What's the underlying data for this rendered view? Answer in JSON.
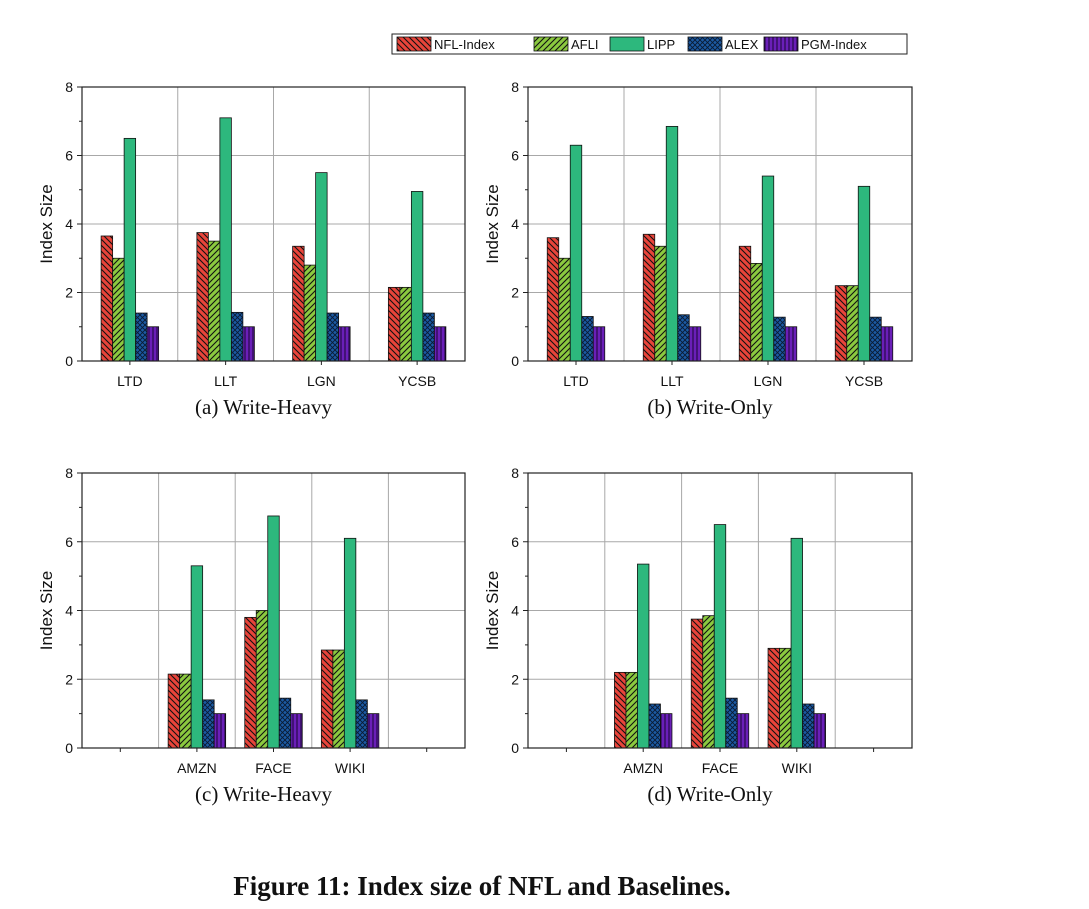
{
  "legend": [
    {
      "name": "NFL-Index",
      "color": "#e8443a",
      "pattern": "diag-back"
    },
    {
      "name": "AFLI",
      "color": "#8bc93f",
      "pattern": "diag-fwd"
    },
    {
      "name": "LIPP",
      "color": "#2db87d",
      "pattern": "solid"
    },
    {
      "name": "ALEX",
      "color": "#1b5aa3",
      "pattern": "cross"
    },
    {
      "name": "PGM-Index",
      "color": "#6a1fb8",
      "pattern": "vertical"
    }
  ],
  "caption": "Figure 11: Index size of NFL and Baselines.",
  "chart_data": [
    {
      "type": "bar",
      "subtitle": "(a) Write-Heavy",
      "ylabel": "Index Size",
      "ylim": [
        0,
        8
      ],
      "yticks": [
        "0",
        "2",
        "4",
        "6",
        "8"
      ],
      "grid": true,
      "categories": [
        "LTD",
        "LLT",
        "LGN",
        "YCSB"
      ],
      "series": [
        {
          "name": "NFL-Index",
          "values": [
            3.65,
            3.75,
            3.35,
            2.15
          ]
        },
        {
          "name": "AFLI",
          "values": [
            3.0,
            3.5,
            2.8,
            2.15
          ]
        },
        {
          "name": "LIPP",
          "values": [
            6.5,
            7.1,
            5.5,
            4.95
          ]
        },
        {
          "name": "ALEX",
          "values": [
            1.4,
            1.42,
            1.4,
            1.4
          ]
        },
        {
          "name": "PGM-Index",
          "values": [
            1.0,
            1.0,
            1.0,
            1.0
          ]
        }
      ]
    },
    {
      "type": "bar",
      "subtitle": "(b) Write-Only",
      "ylabel": "Index Size",
      "ylim": [
        0,
        8
      ],
      "yticks": [
        "0",
        "2",
        "4",
        "6",
        "8"
      ],
      "grid": true,
      "categories": [
        "LTD",
        "LLT",
        "LGN",
        "YCSB"
      ],
      "series": [
        {
          "name": "NFL-Index",
          "values": [
            3.6,
            3.7,
            3.35,
            2.2
          ]
        },
        {
          "name": "AFLI",
          "values": [
            3.0,
            3.35,
            2.85,
            2.2
          ]
        },
        {
          "name": "LIPP",
          "values": [
            6.3,
            6.85,
            5.4,
            5.1
          ]
        },
        {
          "name": "ALEX",
          "values": [
            1.3,
            1.35,
            1.28,
            1.28
          ]
        },
        {
          "name": "PGM-Index",
          "values": [
            1.0,
            1.0,
            1.0,
            1.0
          ]
        }
      ]
    },
    {
      "type": "bar",
      "subtitle": "(c) Write-Heavy",
      "ylabel": "Index Size",
      "ylim": [
        0,
        8
      ],
      "yticks": [
        "0",
        "2",
        "4",
        "6",
        "8"
      ],
      "grid": true,
      "categories": [
        "",
        "AMZN",
        "FACE",
        "WIKI",
        ""
      ],
      "series": [
        {
          "name": "NFL-Index",
          "values": [
            null,
            2.15,
            3.8,
            2.85,
            null
          ]
        },
        {
          "name": "AFLI",
          "values": [
            null,
            2.15,
            4.0,
            2.85,
            null
          ]
        },
        {
          "name": "LIPP",
          "values": [
            null,
            5.3,
            6.75,
            6.1,
            null
          ]
        },
        {
          "name": "ALEX",
          "values": [
            null,
            1.4,
            1.45,
            1.4,
            null
          ]
        },
        {
          "name": "PGM-Index",
          "values": [
            null,
            1.0,
            1.0,
            1.0,
            null
          ]
        }
      ]
    },
    {
      "type": "bar",
      "subtitle": "(d) Write-Only",
      "ylabel": "Index Size",
      "ylim": [
        0,
        8
      ],
      "yticks": [
        "0",
        "2",
        "4",
        "6",
        "8"
      ],
      "grid": true,
      "categories": [
        "",
        "AMZN",
        "FACE",
        "WIKI",
        ""
      ],
      "series": [
        {
          "name": "NFL-Index",
          "values": [
            null,
            2.2,
            3.75,
            2.9,
            null
          ]
        },
        {
          "name": "AFLI",
          "values": [
            null,
            2.2,
            3.85,
            2.9,
            null
          ]
        },
        {
          "name": "LIPP",
          "values": [
            null,
            5.35,
            6.5,
            6.1,
            null
          ]
        },
        {
          "name": "ALEX",
          "values": [
            null,
            1.28,
            1.45,
            1.28,
            null
          ]
        },
        {
          "name": "PGM-Index",
          "values": [
            null,
            1.0,
            1.0,
            1.0,
            null
          ]
        }
      ]
    }
  ]
}
